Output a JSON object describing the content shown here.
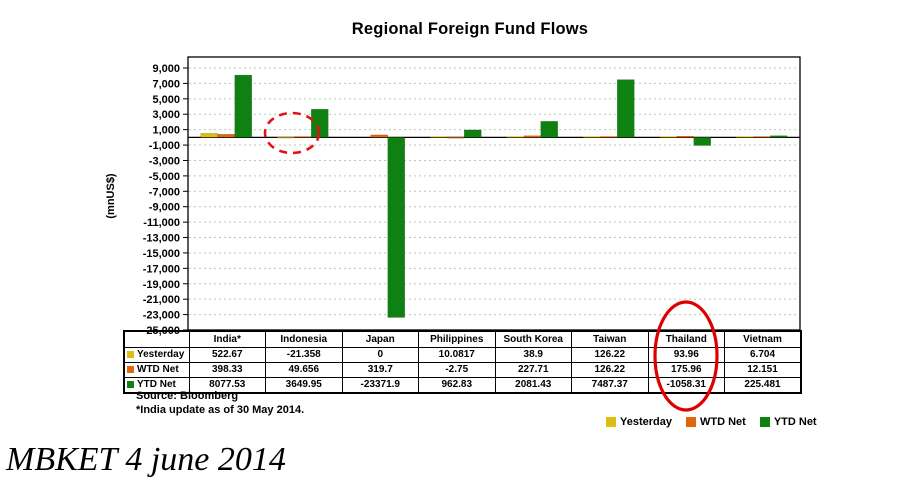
{
  "title": "Regional Foreign Fund Flows",
  "chart_data": {
    "type": "bar",
    "title": "Regional Foreign Fund Flows",
    "xlabel": "",
    "ylabel": "(mnUS$)",
    "categories": [
      "India*",
      "Indonesia",
      "Japan",
      "Philippines",
      "South Korea",
      "Taiwan",
      "Thailand",
      "Vietnam"
    ],
    "series": [
      {
        "name": "Yesterday",
        "color": "#DCBE12",
        "values": [
          522.67,
          -21.358,
          0,
          10.0817,
          38.9,
          126.22,
          93.96,
          6.704
        ]
      },
      {
        "name": "WTD Net",
        "color": "#E2640C",
        "values": [
          398.33,
          49.656,
          319.7,
          -2.75,
          227.71,
          126.22,
          175.96,
          12.151
        ]
      },
      {
        "name": "YTD Net",
        "color": "#0E8110",
        "values": [
          8077.53,
          3649.95,
          -23371.9,
          962.83,
          2081.43,
          7487.37,
          -1058.31,
          225.481
        ]
      }
    ],
    "y_tick_labels": [
      "9,000",
      "7,000",
      "5,000",
      "3,000",
      "1,000",
      "-1,000",
      "-3,000",
      "-5,000",
      "-7,000",
      "-9,000",
      "-11,000",
      "-13,000",
      "-15,000",
      "-17,000",
      "-19,000",
      "-21,000",
      "-23,000",
      "-25,000"
    ],
    "ylim": [
      -25000,
      10400
    ],
    "grid": true,
    "gridline_color": "#b5cab5",
    "legend_position": "bottom-right",
    "annotations": [
      {
        "shape": "ellipse",
        "stroke": "dashed",
        "color": "#E01313",
        "note": "red dashed circle around the small Yesterday/WTD bars of Indonesia near the zero line"
      },
      {
        "shape": "ellipse",
        "stroke": "solid",
        "color": "#DD0000",
        "note": "red solid oval around the Thailand column of the data table"
      }
    ]
  },
  "table": {
    "columns": [
      "India*",
      "Indonesia",
      "Japan",
      "Philippines",
      "South Korea",
      "Taiwan",
      "Thailand",
      "Vietnam"
    ],
    "rows": [
      {
        "label": "Yesterday",
        "swatch": "#DCBE12",
        "values": [
          "522.67",
          "-21.358",
          "0",
          "10.0817",
          "38.9",
          "126.22",
          "93.96",
          "6.704"
        ]
      },
      {
        "label": "WTD Net",
        "swatch": "#E2640C",
        "values": [
          "398.33",
          "49.656",
          "319.7",
          "-2.75",
          "227.71",
          "126.22",
          "175.96",
          "12.151"
        ]
      },
      {
        "label": "YTD Net",
        "swatch": "#0E8110",
        "values": [
          "8077.53",
          "3649.95",
          "-23371.9",
          "962.83",
          "2081.43",
          "7487.37",
          "-1058.31",
          "225.481"
        ]
      }
    ]
  },
  "source": {
    "line1": "Source: Bloomberg",
    "line2": "*India update as of 30 May 2014."
  },
  "legend": [
    {
      "label": "Yesterday",
      "color": "#DCBE12"
    },
    {
      "label": "WTD Net",
      "color": "#E2640C"
    },
    {
      "label": "YTD Net",
      "color": "#0E8110"
    }
  ],
  "footer": {
    "note": "MBKET 4 june 2014"
  }
}
